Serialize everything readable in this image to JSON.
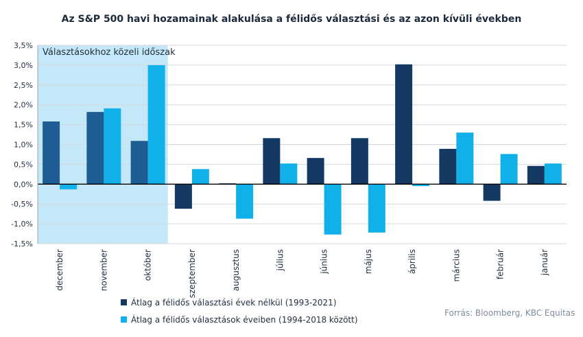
{
  "chart_data": {
    "type": "bar",
    "title": "Az S&P 500 havi hozamainak alakulása a félidős választási és az azon kívüli években",
    "categories": [
      "december",
      "november",
      "október",
      "szeptember",
      "augusztus",
      "július",
      "június",
      "május",
      "április",
      "március",
      "február",
      "január"
    ],
    "series": [
      {
        "name": "Átlag a félidős választási évek nélkül (1993-2021)",
        "color": "#143a63",
        "values": [
          1.58,
          1.82,
          1.09,
          -0.62,
          0.02,
          1.16,
          0.66,
          1.16,
          3.02,
          0.89,
          -0.42,
          0.46
        ]
      },
      {
        "name": "Átlag a félidős választások éveiben (1994-2018 között)",
        "color": "#12b0ea",
        "values": [
          -0.13,
          1.91,
          3.0,
          0.38,
          -0.87,
          0.52,
          -1.27,
          -1.22,
          -0.05,
          1.3,
          0.76,
          0.52
        ]
      }
    ],
    "yticks": [
      "3,5%",
      "3,0%",
      "2,5%",
      "2,0%",
      "1,5%",
      "1,0%",
      "0,5%",
      "0,0%",
      "-0,5%",
      "-1,0%",
      "-1,5%"
    ],
    "ylim": [
      -1.5,
      3.5
    ],
    "grid": true,
    "legend_position": "bottom",
    "highlight": {
      "label": "Választásokhoz közeli időszak",
      "categories": [
        "december",
        "november",
        "október"
      ],
      "color": "#c4e8f8"
    },
    "highlight_series1_color": "#1d5d94"
  },
  "source": "Forrás: Bloomberg,  KBC Equitas"
}
